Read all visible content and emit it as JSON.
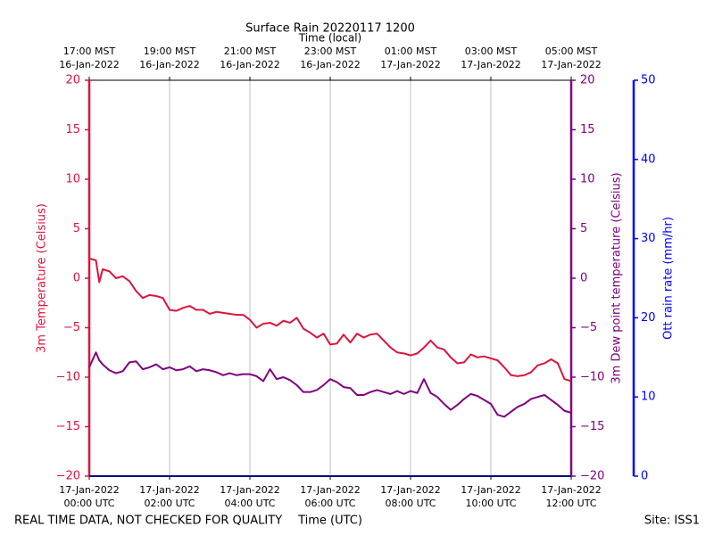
{
  "chart_data": {
    "type": "line",
    "title": "Surface Rain 20220117 1200",
    "x2label": "Time (local)",
    "xlabel": "Time (UTC)",
    "ylabel": "3m Temperature (Celsius)",
    "y2label": "3m Dew point temperature (Celsius)",
    "y3label": "Ott rain rate (mm/hr)",
    "note": "REAL TIME DATA, NOT CHECKED FOR QUALITY",
    "site": "Site: ISS1",
    "grid": true,
    "xlim": [
      "2022-01-17 00:00",
      "2022-01-17 12:00"
    ],
    "xticks": [
      {
        "value": "2022-01-17 00:00",
        "label": "17-Jan-2022\n00:00 UTC"
      },
      {
        "value": "2022-01-17 02:00",
        "label": "17-Jan-2022\n02:00 UTC"
      },
      {
        "value": "2022-01-17 04:00",
        "label": "17-Jan-2022\n04:00 UTC"
      },
      {
        "value": "2022-01-17 06:00",
        "label": "17-Jan-2022\n06:00 UTC"
      },
      {
        "value": "2022-01-17 08:00",
        "label": "17-Jan-2022\n08:00 UTC"
      },
      {
        "value": "2022-01-17 10:00",
        "label": "17-Jan-2022\n10:00 UTC"
      },
      {
        "value": "2022-01-17 12:00",
        "label": "17-Jan-2022\n12:00 UTC"
      }
    ],
    "x2ticks": [
      {
        "value": "2022-01-17 00:00",
        "label": "17:00 MST\n16-Jan-2022"
      },
      {
        "value": "2022-01-17 02:00",
        "label": "19:00 MST\n16-Jan-2022"
      },
      {
        "value": "2022-01-17 04:00",
        "label": "21:00 MST\n16-Jan-2022"
      },
      {
        "value": "2022-01-17 06:00",
        "label": "23:00 MST\n16-Jan-2022"
      },
      {
        "value": "2022-01-17 08:00",
        "label": "01:00 MST\n17-Jan-2022"
      },
      {
        "value": "2022-01-17 10:00",
        "label": "03:00 MST\n17-Jan-2022"
      },
      {
        "value": "2022-01-17 12:00",
        "label": "05:00 MST\n17-Jan-2022"
      }
    ],
    "ylim": [
      -20,
      20
    ],
    "yticks": [
      {
        "value": -20,
        "label": "−20"
      },
      {
        "value": -15,
        "label": "−15"
      },
      {
        "value": -10,
        "label": "−10"
      },
      {
        "value": -5,
        "label": "−5"
      },
      0,
      5,
      10,
      15,
      20
    ],
    "ycolor": "#dc143c",
    "y2lim": [
      -20,
      20
    ],
    "y2ticks": [
      {
        "value": -20,
        "label": "−20"
      },
      {
        "value": -15,
        "label": "−15"
      },
      {
        "value": -10,
        "label": "−10"
      },
      {
        "value": -5,
        "label": "−5"
      },
      0,
      5,
      10,
      15,
      20
    ],
    "y2color": "#800080",
    "y3lim": [
      0,
      50
    ],
    "y3ticks": [
      0,
      10,
      20,
      30,
      40,
      50
    ],
    "y3color": "#0000ff",
    "x": [
      "2022-01-17 00:00",
      "2022-01-17 00:10",
      "2022-01-17 00:15",
      "2022-01-17 00:20",
      "2022-01-17 00:30",
      "2022-01-17 00:40",
      "2022-01-17 00:50",
      "2022-01-17 01:00",
      "2022-01-17 01:10",
      "2022-01-17 01:20",
      "2022-01-17 01:30",
      "2022-01-17 01:40",
      "2022-01-17 01:50",
      "2022-01-17 02:00",
      "2022-01-17 02:10",
      "2022-01-17 02:20",
      "2022-01-17 02:30",
      "2022-01-17 02:40",
      "2022-01-17 02:50",
      "2022-01-17 03:00",
      "2022-01-17 03:10",
      "2022-01-17 03:20",
      "2022-01-17 03:30",
      "2022-01-17 03:40",
      "2022-01-17 03:50",
      "2022-01-17 04:00",
      "2022-01-17 04:10",
      "2022-01-17 04:20",
      "2022-01-17 04:30",
      "2022-01-17 04:40",
      "2022-01-17 04:50",
      "2022-01-17 05:00",
      "2022-01-17 05:10",
      "2022-01-17 05:20",
      "2022-01-17 05:30",
      "2022-01-17 05:40",
      "2022-01-17 05:50",
      "2022-01-17 06:00",
      "2022-01-17 06:10",
      "2022-01-17 06:20",
      "2022-01-17 06:30",
      "2022-01-17 06:40",
      "2022-01-17 06:50",
      "2022-01-17 07:00",
      "2022-01-17 07:10",
      "2022-01-17 07:20",
      "2022-01-17 07:30",
      "2022-01-17 07:40",
      "2022-01-17 07:50",
      "2022-01-17 08:00",
      "2022-01-17 08:10",
      "2022-01-17 08:20",
      "2022-01-17 08:30",
      "2022-01-17 08:40",
      "2022-01-17 08:50",
      "2022-01-17 09:00",
      "2022-01-17 09:10",
      "2022-01-17 09:20",
      "2022-01-17 09:30",
      "2022-01-17 09:40",
      "2022-01-17 09:50",
      "2022-01-17 10:00",
      "2022-01-17 10:10",
      "2022-01-17 10:20",
      "2022-01-17 10:30",
      "2022-01-17 10:40",
      "2022-01-17 10:50",
      "2022-01-17 11:00",
      "2022-01-17 11:10",
      "2022-01-17 11:20",
      "2022-01-17 11:30",
      "2022-01-17 11:40",
      "2022-01-17 11:50",
      "2022-01-17 12:00"
    ],
    "series": [
      {
        "color": "#dc143c",
        "axis": "y",
        "values": [
          2,
          1.8,
          -0.4,
          0.9,
          0.7,
          0,
          0.2,
          -0.3,
          -1.3,
          -2,
          -1.7,
          -1.8,
          -2.0,
          -3.2,
          -3.3,
          -3.0,
          -2.8,
          -3.2,
          -3.2,
          -3.6,
          -3.4,
          -3.5,
          -3.6,
          -3.7,
          -3.7,
          -4.2,
          -5.0,
          -4.6,
          -4.5,
          -4.8,
          -4.3,
          -4.5,
          -4.0,
          -5.1,
          -5.5,
          -6.0,
          -5.6,
          -6.7,
          -6.6,
          -5.7,
          -6.5,
          -5.6,
          -6.0,
          -5.7,
          -5.6,
          -6.3,
          -7.0,
          -7.5,
          -7.6,
          -7.8,
          -7.6,
          -7.0,
          -6.3,
          -7.0,
          -7.2,
          -8.0,
          -8.6,
          -8.5,
          -7.7,
          -8.0,
          -7.9,
          -8.1,
          -8.3,
          -9.0,
          -9.8,
          -9.9,
          -9.8,
          -9.5,
          -8.8,
          -8.6,
          -8.2,
          -8.6,
          -10.2,
          -10.4
        ]
      },
      {
        "color": "#800080",
        "axis": "y2",
        "values": [
          -9,
          -7.5,
          -8.3,
          -8.7,
          -9.3,
          -9.6,
          -9.4,
          -8.5,
          -8.4,
          -9.2,
          -9.0,
          -8.7,
          -9.2,
          -9.0,
          -9.3,
          -9.2,
          -8.9,
          -9.4,
          -9.2,
          -9.3,
          -9.5,
          -9.8,
          -9.6,
          -9.8,
          -9.7,
          -9.7,
          -9.9,
          -10.4,
          -9.2,
          -10.2,
          -10.0,
          -10.3,
          -10.8,
          -11.5,
          -11.5,
          -11.3,
          -10.8,
          -10.2,
          -10.5,
          -11.0,
          -11.1,
          -11.8,
          -11.8,
          -11.5,
          -11.3,
          -11.5,
          -11.7,
          -11.4,
          -11.7,
          -11.4,
          -11.6,
          -10.2,
          -11.6,
          -12.0,
          -12.7,
          -13.3,
          -12.8,
          -12.2,
          -11.7,
          -11.9,
          -12.3,
          -12.7,
          -13.8,
          -14.0,
          -13.5,
          -13.0,
          -12.7,
          -12.2,
          -12.0,
          -11.8,
          -12.3,
          -12.8,
          -13.4,
          -13.6
        ]
      },
      {
        "color": "#000080",
        "axis": "y3",
        "values": [
          0,
          0,
          0,
          0,
          0,
          0,
          0,
          0,
          0,
          0,
          0,
          0,
          0,
          0,
          0,
          0,
          0,
          0,
          0,
          0,
          0,
          0,
          0,
          0,
          0,
          0,
          0,
          0,
          0,
          0,
          0,
          0,
          0,
          0,
          0,
          0,
          0,
          0,
          0,
          0,
          0,
          0,
          0,
          0,
          0,
          0,
          0,
          0,
          0,
          0,
          0,
          0,
          0,
          0,
          0,
          0,
          0,
          0,
          0,
          0,
          0,
          0,
          0,
          0,
          0,
          0,
          0,
          0,
          0,
          0,
          0,
          0,
          0,
          0
        ]
      }
    ]
  }
}
